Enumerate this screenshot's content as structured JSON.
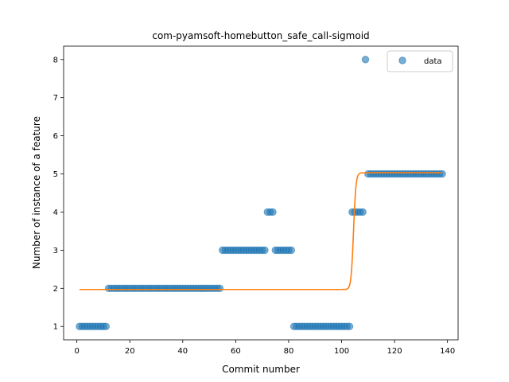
{
  "chart_data": {
    "type": "scatter",
    "title": "com-pyamsoft-homebutton_safe_call-sigmoid",
    "xlabel": "Commit number",
    "ylabel": "Number of instance of a feature",
    "xlim": [
      -5,
      144
    ],
    "ylim": [
      0.65,
      8.35
    ],
    "xticks": [
      0,
      20,
      40,
      60,
      80,
      100,
      120,
      140
    ],
    "yticks": [
      1,
      2,
      3,
      4,
      5,
      6,
      7,
      8
    ],
    "grid": false,
    "legend": {
      "position": "top-right",
      "entries": [
        "data"
      ]
    },
    "colors": {
      "scatter": "#1f77b4",
      "fit": "#ff7f0e"
    },
    "series": [
      {
        "name": "data",
        "kind": "scatter",
        "segments": [
          {
            "x_start": 1,
            "x_end": 11,
            "y": 1
          },
          {
            "x_start": 12,
            "x_end": 54,
            "y": 2
          },
          {
            "x_start": 55,
            "x_end": 71,
            "y": 3
          },
          {
            "x_start": 72,
            "x_end": 74,
            "y": 4
          },
          {
            "x_start": 75,
            "x_end": 81,
            "y": 3
          },
          {
            "x_start": 82,
            "x_end": 103,
            "y": 1
          },
          {
            "x_start": 104,
            "x_end": 108,
            "y": 4
          },
          {
            "x_start": 109,
            "x_end": 109,
            "y": 8
          },
          {
            "x_start": 110,
            "x_end": 138,
            "y": 5
          }
        ]
      },
      {
        "kind": "sigmoid",
        "x_start": 1,
        "x_end": 138,
        "low": 1.97,
        "high": 5.03,
        "midpoint": 104.5,
        "steepness": 2.2
      }
    ]
  }
}
